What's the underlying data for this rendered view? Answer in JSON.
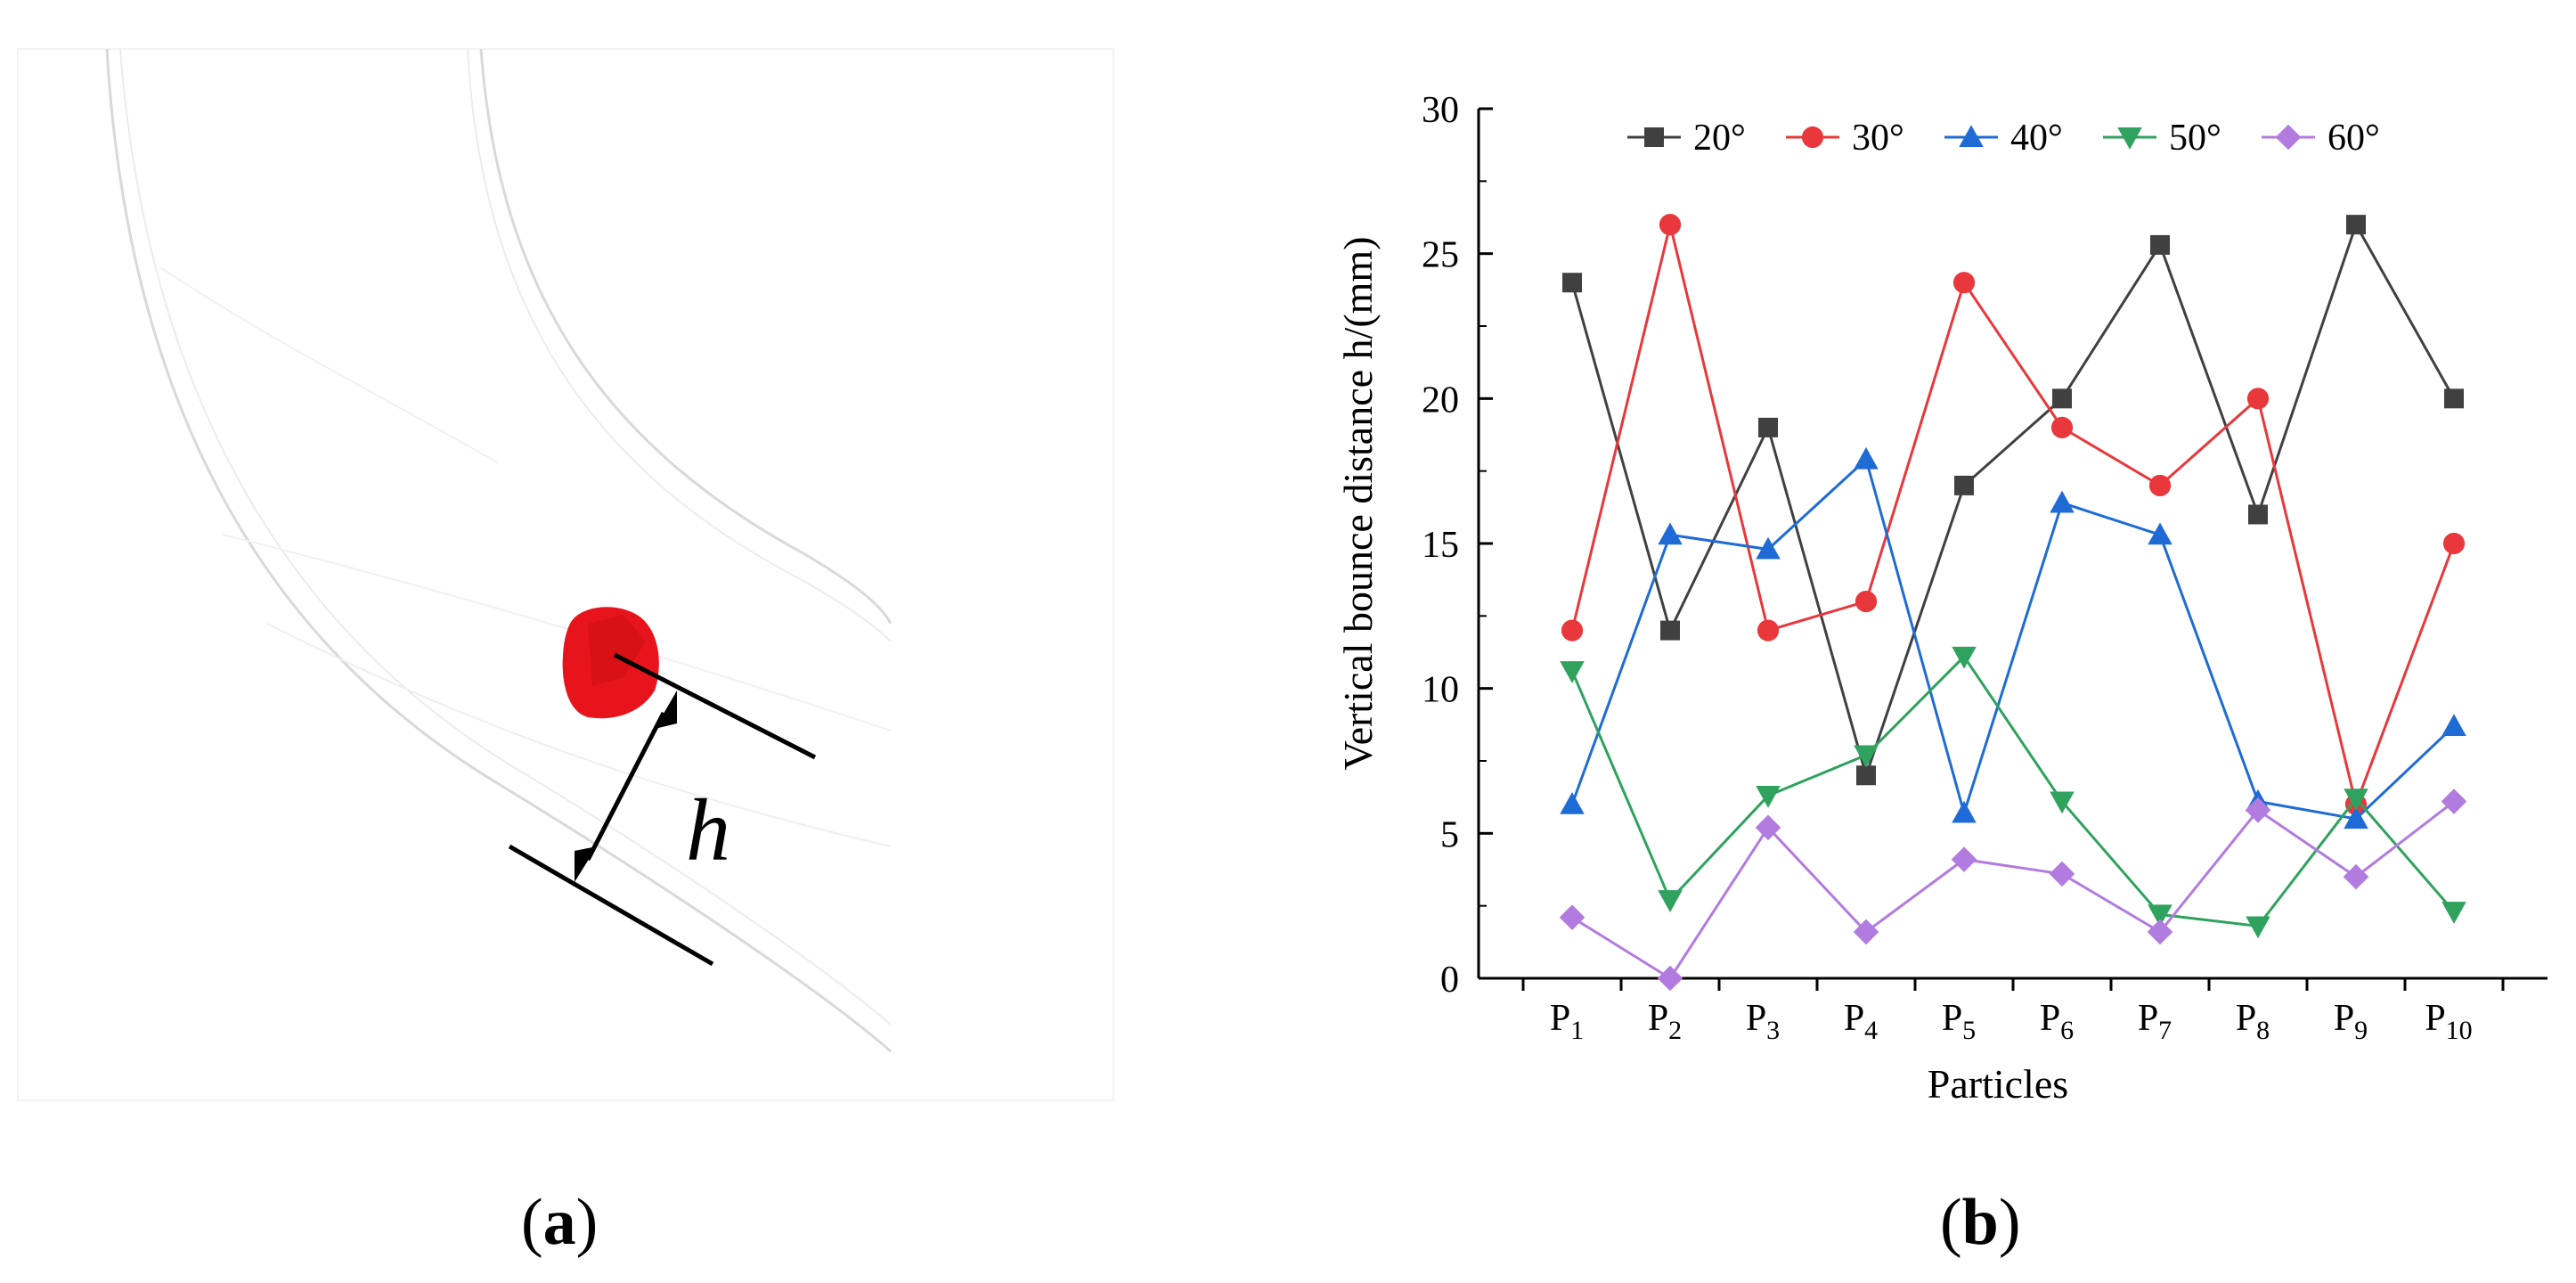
{
  "panel_a": {
    "dimension_label": "h",
    "caption_letter": "a"
  },
  "panel_b": {
    "caption_letter": "b"
  },
  "colors": {
    "particle": "#e8141b",
    "pipe_line": "#d9d9d9",
    "s20": "#404040",
    "s30": "#e8383b",
    "s40": "#1f6bd6",
    "s50": "#2fa25e",
    "s60": "#b27be0"
  },
  "chart_data": {
    "type": "line",
    "title": "",
    "xlabel": "Particles",
    "ylabel": "Vertical bounce distance h/(mm)",
    "ylim": [
      0,
      30
    ],
    "yticks": [
      0,
      5,
      10,
      15,
      20,
      25,
      30
    ],
    "ytick_labels": [
      "0",
      "5",
      "10",
      "15",
      "20",
      "25",
      "30"
    ],
    "categories": [
      {
        "base": "P",
        "sub": "1"
      },
      {
        "base": "P",
        "sub": "2"
      },
      {
        "base": "P",
        "sub": "3"
      },
      {
        "base": "P",
        "sub": "4"
      },
      {
        "base": "P",
        "sub": "5"
      },
      {
        "base": "P",
        "sub": "6"
      },
      {
        "base": "P",
        "sub": "7"
      },
      {
        "base": "P",
        "sub": "8"
      },
      {
        "base": "P",
        "sub": "9"
      },
      {
        "base": "P",
        "sub": "10"
      }
    ],
    "legend_position": "top",
    "series": [
      {
        "name": "20°",
        "marker": "square",
        "color": "#404040",
        "values": [
          24,
          12,
          19,
          7,
          17,
          20,
          25.3,
          16,
          26,
          20
        ]
      },
      {
        "name": "30°",
        "marker": "circle",
        "color": "#e8383b",
        "values": [
          12,
          26,
          12,
          13,
          24,
          19,
          17,
          20,
          6,
          15
        ]
      },
      {
        "name": "40°",
        "marker": "triangle-up",
        "color": "#1f6bd6",
        "values": [
          6,
          15.3,
          14.8,
          17.9,
          5.7,
          16.4,
          15.3,
          6.1,
          5.5,
          8.7
        ]
      },
      {
        "name": "50°",
        "marker": "triangle-down",
        "color": "#2fa25e",
        "values": [
          10.6,
          2.7,
          6.3,
          7.7,
          11.1,
          6.1,
          2.2,
          1.8,
          6.2,
          2.3
        ]
      },
      {
        "name": "60°",
        "marker": "diamond",
        "color": "#b27be0",
        "values": [
          2.1,
          0,
          5.2,
          1.6,
          4.1,
          3.6,
          1.6,
          5.8,
          3.5,
          6.1
        ]
      }
    ]
  }
}
